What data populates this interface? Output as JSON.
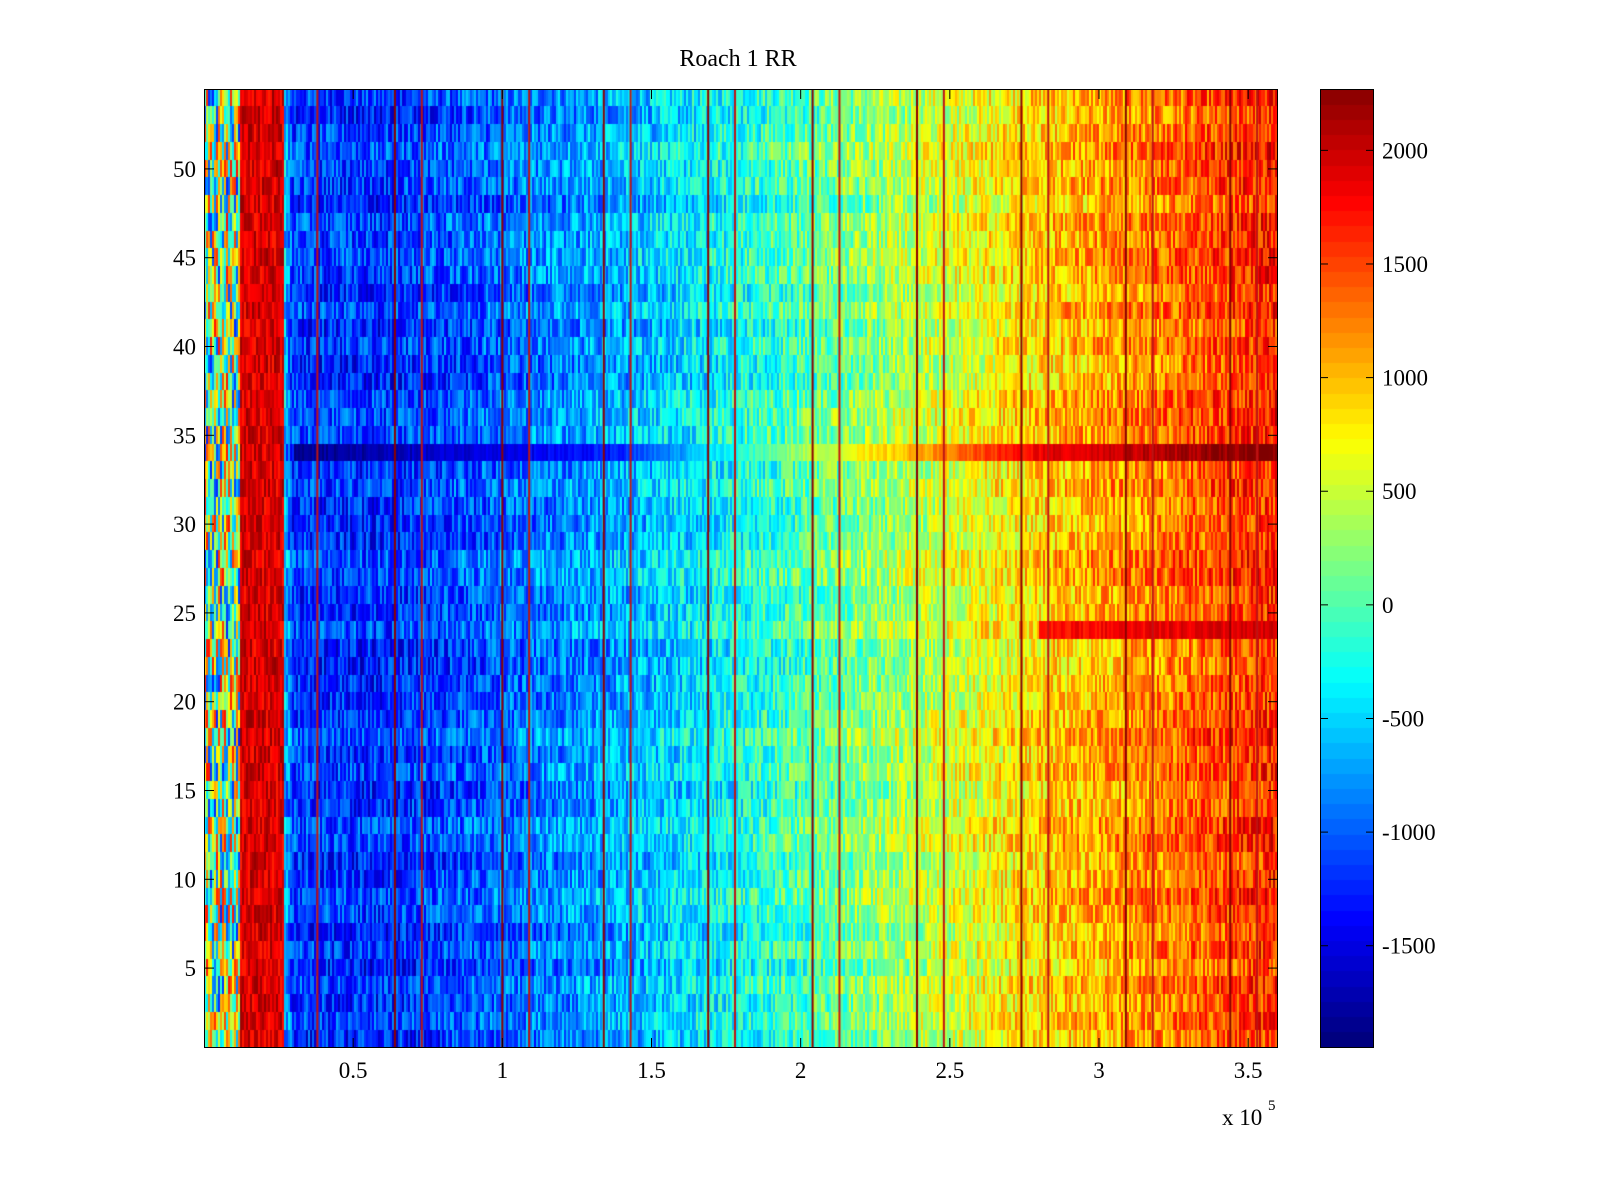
{
  "chart_data": {
    "type": "heatmap",
    "title": "Roach 1 RR",
    "xlabel": "",
    "ylabel": "",
    "x_multiplier_label": {
      "base": "x 10",
      "exponent": "5"
    },
    "xlim": [
      0,
      3.6
    ],
    "ylim": [
      0.5,
      54.5
    ],
    "x_ticks": [
      0.5,
      1,
      1.5,
      2,
      2.5,
      3,
      3.5
    ],
    "x_tick_labels": [
      "0.5",
      "1",
      "1.5",
      "2",
      "2.5",
      "3",
      "3.5"
    ],
    "y_ticks": [
      5,
      10,
      15,
      20,
      25,
      30,
      35,
      40,
      45,
      50
    ],
    "y_tick_labels": [
      "5",
      "10",
      "15",
      "20",
      "25",
      "30",
      "35",
      "40",
      "45",
      "50"
    ],
    "rows": 54,
    "colormap": "jet",
    "clim": [
      -1950,
      2270
    ],
    "colorbar_ticks": [
      2000,
      1500,
      1000,
      500,
      0,
      -500,
      -1000,
      -1500
    ],
    "colorbar_tick_labels": [
      "2000",
      "1500",
      "1000",
      "500",
      "0",
      "-500",
      "-1000",
      "-1500"
    ],
    "trend": {
      "x": [
        0.0,
        0.1,
        0.12,
        0.3,
        0.6,
        1.0,
        1.4,
        1.7,
        2.0,
        2.4,
        2.8,
        3.2,
        3.6
      ],
      "value": [
        -300,
        200,
        2270,
        -1200,
        -1250,
        -1000,
        -700,
        -400,
        -50,
        400,
        850,
        1200,
        1600
      ]
    },
    "hot_column_band": {
      "x_range": [
        0.12,
        0.27
      ],
      "value": 2200
    },
    "vertical_stripes_x": [
      0.38,
      0.64,
      0.73,
      1.0,
      1.09,
      1.34,
      1.43,
      1.69,
      1.78,
      2.04,
      2.13,
      2.39,
      2.48,
      2.74,
      2.83,
      3.09,
      3.18,
      3.44,
      3.53
    ],
    "row_anomalies": [
      {
        "row": 34,
        "description": "strong row",
        "values": {
          "x": [
            0.3,
            1.4,
            2.0,
            2.8,
            3.6
          ],
          "value": [
            -1900,
            -1300,
            300,
            1800,
            2270
          ]
        }
      },
      {
        "row": 24,
        "description": "warm row right side",
        "values": {
          "x": [
            2.8,
            3.6
          ],
          "value": [
            1700,
            1900
          ]
        }
      }
    ]
  }
}
